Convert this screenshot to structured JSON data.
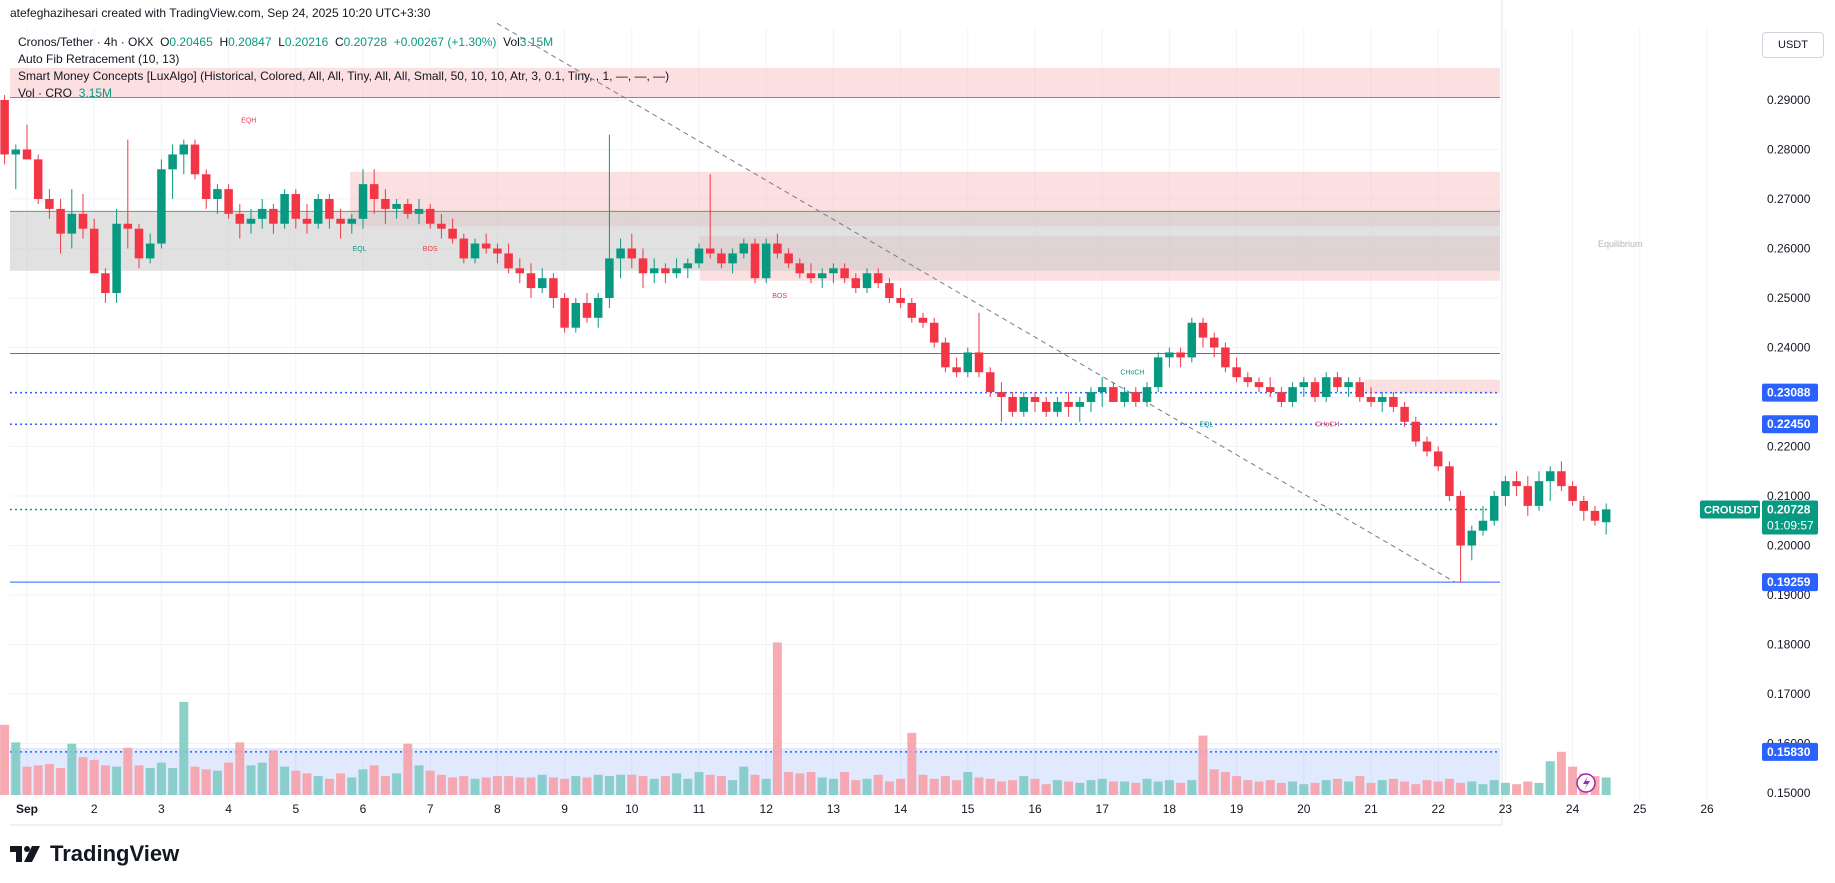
{
  "header": {
    "text": "atefeghazihesari created with TradingView.com, Sep 24, 2025 10:20 UTC+3:30"
  },
  "legend": {
    "symbol": "Cronos/Tether · 4h · OKX",
    "o_label": "O",
    "o": "0.20465",
    "h_label": "H",
    "h": "0.20847",
    "l_label": "L",
    "l": "0.20216",
    "c_label": "C",
    "c": "0.20728",
    "change": "+0.00267 (+1.30%)",
    "vol_label": "Vol",
    "vol": "3.15M",
    "fib": "Auto Fib Retracement (10, 13)",
    "smc": "Smart Money Concepts [LuxAlgo] (Historical, Colored, All, All, Tiny, All, All, Small, 50, 10, 10, Atr, 3, 0.1, Tiny, , 1, —, —, —)",
    "vol_row_label": "Vol · CRO",
    "vol_row_value": "3.15M"
  },
  "currency_button": "USDT",
  "brand": "TradingView",
  "colors": {
    "up": "#089981",
    "down": "#f23645",
    "up_vol": "#80cbc4",
    "down_vol": "#f7a1a9",
    "grid": "#f0f3fa",
    "blue_level": "#2962ff"
  },
  "chart_data": {
    "type": "candlestick",
    "symbol": "CROUSDT",
    "timeframe": "4h",
    "x_tick_labels": [
      "Sep",
      "2",
      "3",
      "4",
      "5",
      "6",
      "7",
      "8",
      "9",
      "10",
      "11",
      "12",
      "13",
      "14",
      "15",
      "16",
      "17",
      "18",
      "19",
      "20",
      "21",
      "22",
      "23",
      "24",
      "25",
      "26"
    ],
    "y_ticks": [
      "0.29000",
      "0.28000",
      "0.27000",
      "0.26000",
      "0.25000",
      "0.24000",
      "0.23000",
      "0.22000",
      "0.21000",
      "0.20000",
      "0.19000",
      "0.18000",
      "0.17000",
      "0.16000",
      "0.15000"
    ],
    "price_labels": [
      {
        "text": "0.23088",
        "value": 0.23088,
        "color": "#2962ff"
      },
      {
        "text": "0.22450",
        "value": 0.2245,
        "color": "#2962ff"
      },
      {
        "text": "0.19259",
        "value": 0.19259,
        "color": "#2962ff"
      },
      {
        "text": "0.15830",
        "value": 0.1583,
        "color": "#2962ff"
      }
    ],
    "last_price": {
      "symbol": "CROUSDT",
      "value": "0.20728",
      "countdown": "01:09:57"
    },
    "zones": [
      {
        "name": "top-supply",
        "from": 0.2905,
        "to": 0.2965,
        "color": "#f7c5c9"
      },
      {
        "name": "upper-supply",
        "from": 0.2645,
        "to": 0.2755,
        "color": "#f7c5c9"
      },
      {
        "name": "equilibrium",
        "from": 0.2535,
        "to": 0.2625,
        "color": "#f7c5c9",
        "label": "Equilibrium"
      },
      {
        "name": "gray-zone",
        "from": 0.2555,
        "to": 0.2675,
        "color": "#c9c9c9"
      },
      {
        "name": "small-supply",
        "from": 0.2307,
        "to": 0.2335,
        "color": "#f7c5c9"
      }
    ],
    "hlines": [
      {
        "value": 0.2905,
        "color": "#4caf50",
        "style": "solid"
      },
      {
        "value": 0.2675,
        "color": "#4caf50",
        "style": "solid"
      },
      {
        "value": 0.2388,
        "color": "#f23645",
        "style": "solid"
      },
      {
        "value": 0.23088,
        "color": "#2962ff",
        "style": "dotted"
      },
      {
        "value": 0.2245,
        "color": "#2962ff",
        "style": "dotted"
      },
      {
        "value": 0.20728,
        "color": "#089981",
        "style": "dotted"
      },
      {
        "value": 0.19259,
        "color": "#2962ff",
        "style": "solid"
      },
      {
        "value": 0.1583,
        "color": "#2962ff",
        "style": "dotted"
      }
    ],
    "annotations": [
      {
        "text": "EQH",
        "day": 3.3,
        "price": 0.2855,
        "color": "#f23645"
      },
      {
        "text": "EQL",
        "day": 4.95,
        "price": 0.2595,
        "color": "#089981"
      },
      {
        "text": "BOS",
        "day": 6.0,
        "price": 0.2595,
        "color": "#f23645"
      },
      {
        "text": "BOS",
        "day": 11.2,
        "price": 0.25,
        "color": "#f23645"
      },
      {
        "text": "CHoCH",
        "day": 16.45,
        "price": 0.2345,
        "color": "#089981"
      },
      {
        "text": "EQL",
        "day": 17.55,
        "price": 0.224,
        "color": "#089981"
      },
      {
        "text": "CHoCH",
        "day": 19.35,
        "price": 0.224,
        "color": "#f23645"
      }
    ],
    "candles": [
      [
        0.293,
        0.296,
        0.288,
        0.29
      ],
      [
        0.29,
        0.291,
        0.277,
        0.279
      ],
      [
        0.279,
        0.281,
        0.272,
        0.28
      ],
      [
        0.28,
        0.285,
        0.278,
        0.278
      ],
      [
        0.278,
        0.279,
        0.269,
        0.27
      ],
      [
        0.27,
        0.272,
        0.266,
        0.268
      ],
      [
        0.268,
        0.27,
        0.259,
        0.263
      ],
      [
        0.263,
        0.272,
        0.26,
        0.267
      ],
      [
        0.267,
        0.271,
        0.262,
        0.264
      ],
      [
        0.264,
        0.266,
        0.255,
        0.255
      ],
      [
        0.255,
        0.256,
        0.249,
        0.251
      ],
      [
        0.251,
        0.268,
        0.249,
        0.265
      ],
      [
        0.265,
        0.282,
        0.26,
        0.264
      ],
      [
        0.264,
        0.265,
        0.256,
        0.258
      ],
      [
        0.258,
        0.263,
        0.257,
        0.261
      ],
      [
        0.261,
        0.278,
        0.26,
        0.276
      ],
      [
        0.276,
        0.281,
        0.27,
        0.279
      ],
      [
        0.279,
        0.282,
        0.275,
        0.281
      ],
      [
        0.281,
        0.282,
        0.274,
        0.275
      ],
      [
        0.275,
        0.276,
        0.268,
        0.27
      ],
      [
        0.27,
        0.273,
        0.267,
        0.272
      ],
      [
        0.272,
        0.273,
        0.266,
        0.267
      ],
      [
        0.267,
        0.269,
        0.262,
        0.265
      ],
      [
        0.265,
        0.268,
        0.263,
        0.266
      ],
      [
        0.266,
        0.27,
        0.264,
        0.268
      ],
      [
        0.268,
        0.269,
        0.263,
        0.265
      ],
      [
        0.265,
        0.272,
        0.264,
        0.271
      ],
      [
        0.271,
        0.272,
        0.264,
        0.266
      ],
      [
        0.266,
        0.269,
        0.263,
        0.265
      ],
      [
        0.265,
        0.271,
        0.264,
        0.27
      ],
      [
        0.27,
        0.271,
        0.264,
        0.266
      ],
      [
        0.266,
        0.268,
        0.262,
        0.265
      ],
      [
        0.265,
        0.267,
        0.263,
        0.266
      ],
      [
        0.266,
        0.276,
        0.264,
        0.273
      ],
      [
        0.273,
        0.276,
        0.267,
        0.27
      ],
      [
        0.27,
        0.272,
        0.265,
        0.268
      ],
      [
        0.268,
        0.27,
        0.266,
        0.269
      ],
      [
        0.269,
        0.27,
        0.266,
        0.267
      ],
      [
        0.267,
        0.27,
        0.265,
        0.268
      ],
      [
        0.268,
        0.269,
        0.264,
        0.265
      ],
      [
        0.265,
        0.267,
        0.262,
        0.264
      ],
      [
        0.264,
        0.266,
        0.261,
        0.262
      ],
      [
        0.262,
        0.263,
        0.257,
        0.258
      ],
      [
        0.258,
        0.262,
        0.257,
        0.261
      ],
      [
        0.261,
        0.263,
        0.259,
        0.26
      ],
      [
        0.26,
        0.261,
        0.257,
        0.259
      ],
      [
        0.259,
        0.261,
        0.255,
        0.256
      ],
      [
        0.256,
        0.258,
        0.253,
        0.255
      ],
      [
        0.255,
        0.257,
        0.25,
        0.252
      ],
      [
        0.252,
        0.256,
        0.251,
        0.254
      ],
      [
        0.254,
        0.255,
        0.248,
        0.25
      ],
      [
        0.25,
        0.251,
        0.243,
        0.244
      ],
      [
        0.244,
        0.25,
        0.243,
        0.249
      ],
      [
        0.249,
        0.251,
        0.245,
        0.246
      ],
      [
        0.246,
        0.251,
        0.244,
        0.25
      ],
      [
        0.25,
        0.283,
        0.248,
        0.258
      ],
      [
        0.258,
        0.262,
        0.254,
        0.26
      ],
      [
        0.26,
        0.263,
        0.256,
        0.258
      ],
      [
        0.258,
        0.26,
        0.252,
        0.255
      ],
      [
        0.255,
        0.258,
        0.253,
        0.256
      ],
      [
        0.256,
        0.257,
        0.253,
        0.255
      ],
      [
        0.255,
        0.258,
        0.254,
        0.256
      ],
      [
        0.256,
        0.258,
        0.254,
        0.257
      ],
      [
        0.257,
        0.261,
        0.256,
        0.26
      ],
      [
        0.26,
        0.275,
        0.258,
        0.259
      ],
      [
        0.259,
        0.26,
        0.256,
        0.257
      ],
      [
        0.257,
        0.26,
        0.255,
        0.259
      ],
      [
        0.259,
        0.262,
        0.258,
        0.261
      ],
      [
        0.261,
        0.262,
        0.253,
        0.254
      ],
      [
        0.254,
        0.262,
        0.253,
        0.261
      ],
      [
        0.261,
        0.263,
        0.258,
        0.259
      ],
      [
        0.259,
        0.26,
        0.256,
        0.257
      ],
      [
        0.257,
        0.258,
        0.254,
        0.255
      ],
      [
        0.255,
        0.257,
        0.253,
        0.254
      ],
      [
        0.254,
        0.256,
        0.252,
        0.255
      ],
      [
        0.255,
        0.257,
        0.253,
        0.256
      ],
      [
        0.256,
        0.257,
        0.253,
        0.254
      ],
      [
        0.254,
        0.255,
        0.251,
        0.252
      ],
      [
        0.252,
        0.256,
        0.251,
        0.255
      ],
      [
        0.255,
        0.256,
        0.252,
        0.253
      ],
      [
        0.253,
        0.254,
        0.249,
        0.25
      ],
      [
        0.25,
        0.252,
        0.248,
        0.249
      ],
      [
        0.249,
        0.25,
        0.245,
        0.246
      ],
      [
        0.246,
        0.247,
        0.244,
        0.245
      ],
      [
        0.245,
        0.246,
        0.24,
        0.241
      ],
      [
        0.241,
        0.242,
        0.235,
        0.236
      ],
      [
        0.236,
        0.238,
        0.234,
        0.235
      ],
      [
        0.235,
        0.24,
        0.234,
        0.239
      ],
      [
        0.239,
        0.247,
        0.234,
        0.235
      ],
      [
        0.235,
        0.236,
        0.23,
        0.231
      ],
      [
        0.231,
        0.233,
        0.225,
        0.23
      ],
      [
        0.23,
        0.231,
        0.226,
        0.227
      ],
      [
        0.227,
        0.231,
        0.226,
        0.23
      ],
      [
        0.23,
        0.231,
        0.227,
        0.229
      ],
      [
        0.229,
        0.23,
        0.226,
        0.227
      ],
      [
        0.227,
        0.23,
        0.226,
        0.229
      ],
      [
        0.229,
        0.231,
        0.226,
        0.228
      ],
      [
        0.228,
        0.23,
        0.225,
        0.229
      ],
      [
        0.229,
        0.232,
        0.227,
        0.231
      ],
      [
        0.231,
        0.234,
        0.228,
        0.232
      ],
      [
        0.232,
        0.233,
        0.229,
        0.229
      ],
      [
        0.229,
        0.232,
        0.228,
        0.231
      ],
      [
        0.231,
        0.232,
        0.228,
        0.229
      ],
      [
        0.229,
        0.233,
        0.228,
        0.232
      ],
      [
        0.232,
        0.239,
        0.231,
        0.238
      ],
      [
        0.238,
        0.24,
        0.236,
        0.239
      ],
      [
        0.239,
        0.24,
        0.236,
        0.238
      ],
      [
        0.238,
        0.246,
        0.237,
        0.245
      ],
      [
        0.245,
        0.246,
        0.24,
        0.242
      ],
      [
        0.242,
        0.243,
        0.238,
        0.24
      ],
      [
        0.24,
        0.241,
        0.235,
        0.236
      ],
      [
        0.236,
        0.238,
        0.233,
        0.234
      ],
      [
        0.234,
        0.235,
        0.232,
        0.233
      ],
      [
        0.233,
        0.234,
        0.231,
        0.232
      ],
      [
        0.232,
        0.234,
        0.23,
        0.231
      ],
      [
        0.231,
        0.232,
        0.228,
        0.229
      ],
      [
        0.229,
        0.233,
        0.228,
        0.232
      ],
      [
        0.232,
        0.234,
        0.23,
        0.233
      ],
      [
        0.233,
        0.234,
        0.229,
        0.23
      ],
      [
        0.23,
        0.235,
        0.229,
        0.234
      ],
      [
        0.234,
        0.235,
        0.231,
        0.232
      ],
      [
        0.232,
        0.234,
        0.23,
        0.233
      ],
      [
        0.233,
        0.234,
        0.229,
        0.23
      ],
      [
        0.23,
        0.232,
        0.228,
        0.229
      ],
      [
        0.229,
        0.231,
        0.227,
        0.23
      ],
      [
        0.23,
        0.231,
        0.227,
        0.228
      ],
      [
        0.228,
        0.229,
        0.224,
        0.225
      ],
      [
        0.225,
        0.226,
        0.22,
        0.221
      ],
      [
        0.221,
        0.222,
        0.218,
        0.219
      ],
      [
        0.219,
        0.22,
        0.215,
        0.216
      ],
      [
        0.216,
        0.217,
        0.209,
        0.21
      ],
      [
        0.21,
        0.211,
        0.1926,
        0.2
      ],
      [
        0.2,
        0.204,
        0.197,
        0.203
      ],
      [
        0.203,
        0.208,
        0.202,
        0.205
      ],
      [
        0.205,
        0.211,
        0.204,
        0.21
      ],
      [
        0.21,
        0.214,
        0.208,
        0.213
      ],
      [
        0.213,
        0.215,
        0.21,
        0.212
      ],
      [
        0.212,
        0.214,
        0.206,
        0.208
      ],
      [
        0.208,
        0.215,
        0.207,
        0.213
      ],
      [
        0.213,
        0.216,
        0.209,
        0.215
      ],
      [
        0.215,
        0.217,
        0.211,
        0.212
      ],
      [
        0.212,
        0.213,
        0.208,
        0.209
      ],
      [
        0.209,
        0.21,
        0.205,
        0.207
      ],
      [
        0.207,
        0.208,
        0.204,
        0.205
      ],
      [
        0.2047,
        0.2085,
        0.2022,
        0.2073
      ]
    ],
    "volumes": [
      3.5,
      5.2,
      3.9,
      2.1,
      2.2,
      2.3,
      2.0,
      3.8,
      2.8,
      2.6,
      2.2,
      2.1,
      3.5,
      2.2,
      2.0,
      2.4,
      2.0,
      6.9,
      2.1,
      1.9,
      1.8,
      2.4,
      3.9,
      2.2,
      2.4,
      3.3,
      2.1,
      1.8,
      1.6,
      1.4,
      1.2,
      1.6,
      1.3,
      1.9,
      2.2,
      1.4,
      1.6,
      3.8,
      2.2,
      1.8,
      1.5,
      1.3,
      1.4,
      1.2,
      1.3,
      1.4,
      1.4,
      1.3,
      1.3,
      1.5,
      1.3,
      1.2,
      1.4,
      1.3,
      1.5,
      1.4,
      1.5,
      1.5,
      1.4,
      1.2,
      1.4,
      1.6,
      1.2,
      1.7,
      1.5,
      1.4,
      1.1,
      2.1,
      1.5,
      1.2,
      11.3,
      1.7,
      1.6,
      1.7,
      1.3,
      1.2,
      1.7,
      1.1,
      1.2,
      1.5,
      1.0,
      1.2,
      4.6,
      1.5,
      1.2,
      1.4,
      1.1,
      1.7,
      1.3,
      1.2,
      1.0,
      1.1,
      1.4,
      1.2,
      0.8,
      1.1,
      1.0,
      0.9,
      1.1,
      1.2,
      1.0,
      1.0,
      0.9,
      1.2,
      1.0,
      1.1,
      0.9,
      1.1,
      4.4,
      1.9,
      1.7,
      1.4,
      1.1,
      1.0,
      1.1,
      0.9,
      1.0,
      0.8,
      0.9,
      1.1,
      1.2,
      1.0,
      1.4,
      0.9,
      1.1,
      1.2,
      1.0,
      0.8,
      1.1,
      1.0,
      1.2,
      0.9,
      1.0,
      0.8,
      1.1,
      0.9,
      0.8,
      1.0,
      0.9,
      2.5,
      3.2,
      2.1,
      1.6,
      1.4,
      1.3,
      1.5,
      1.2,
      1.1,
      1.2,
      1.3,
      1.1,
      1.0,
      1.3,
      1.5
    ]
  }
}
